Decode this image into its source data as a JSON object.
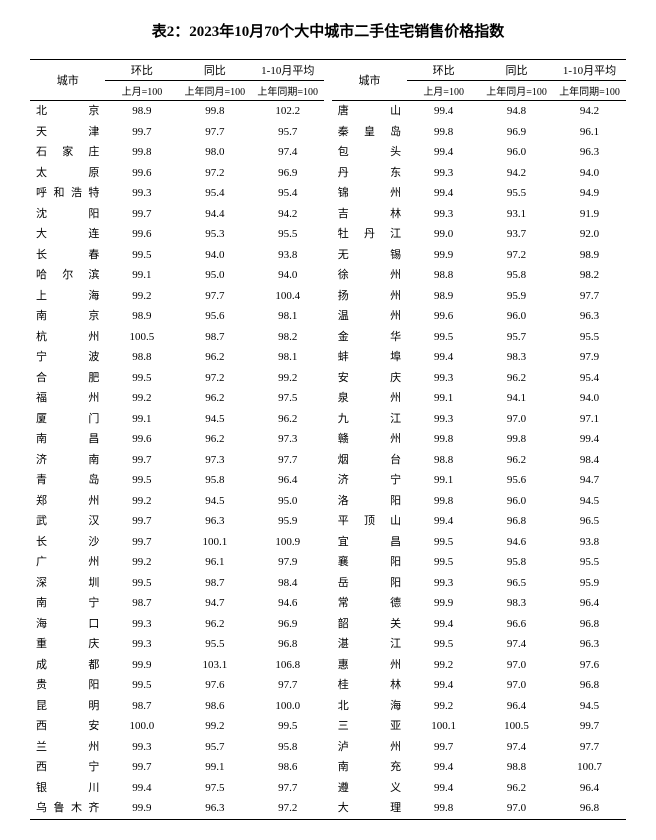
{
  "title": "表2：2023年10月70个大中城市二手住宅销售价格指数",
  "header": {
    "city": "城市",
    "mm": "环比",
    "yy": "同比",
    "avg": "1-10月平均",
    "mm_sub": "上月=100",
    "yy_sub": "上年同月=100",
    "avg_sub": "上年同期=100"
  },
  "left": [
    {
      "c": "北京",
      "mm": "98.9",
      "yy": "99.8",
      "avg": "102.2"
    },
    {
      "c": "天津",
      "mm": "99.7",
      "yy": "97.7",
      "avg": "95.7"
    },
    {
      "c": "石家庄",
      "mm": "99.8",
      "yy": "98.0",
      "avg": "97.4"
    },
    {
      "c": "太原",
      "mm": "99.6",
      "yy": "97.2",
      "avg": "96.9"
    },
    {
      "c": "呼和浩特",
      "mm": "99.3",
      "yy": "95.4",
      "avg": "95.4"
    },
    {
      "c": "沈阳",
      "mm": "99.7",
      "yy": "94.4",
      "avg": "94.2"
    },
    {
      "c": "大连",
      "mm": "99.6",
      "yy": "95.3",
      "avg": "95.5"
    },
    {
      "c": "长春",
      "mm": "99.5",
      "yy": "94.0",
      "avg": "93.8"
    },
    {
      "c": "哈尔滨",
      "mm": "99.1",
      "yy": "95.0",
      "avg": "94.0"
    },
    {
      "c": "上海",
      "mm": "99.2",
      "yy": "97.7",
      "avg": "100.4"
    },
    {
      "c": "南京",
      "mm": "98.9",
      "yy": "95.6",
      "avg": "98.1"
    },
    {
      "c": "杭州",
      "mm": "100.5",
      "yy": "98.7",
      "avg": "98.2"
    },
    {
      "c": "宁波",
      "mm": "98.8",
      "yy": "96.2",
      "avg": "98.1"
    },
    {
      "c": "合肥",
      "mm": "99.5",
      "yy": "97.2",
      "avg": "99.2"
    },
    {
      "c": "福州",
      "mm": "99.2",
      "yy": "96.2",
      "avg": "97.5"
    },
    {
      "c": "厦门",
      "mm": "99.1",
      "yy": "94.5",
      "avg": "96.2"
    },
    {
      "c": "南昌",
      "mm": "99.6",
      "yy": "96.2",
      "avg": "97.3"
    },
    {
      "c": "济南",
      "mm": "99.7",
      "yy": "97.3",
      "avg": "97.7"
    },
    {
      "c": "青岛",
      "mm": "99.5",
      "yy": "95.8",
      "avg": "96.4"
    },
    {
      "c": "郑州",
      "mm": "99.2",
      "yy": "94.5",
      "avg": "95.0"
    },
    {
      "c": "武汉",
      "mm": "99.7",
      "yy": "96.3",
      "avg": "95.9"
    },
    {
      "c": "长沙",
      "mm": "99.7",
      "yy": "100.1",
      "avg": "100.9"
    },
    {
      "c": "广州",
      "mm": "99.2",
      "yy": "96.1",
      "avg": "97.9"
    },
    {
      "c": "深圳",
      "mm": "99.5",
      "yy": "98.7",
      "avg": "98.4"
    },
    {
      "c": "南宁",
      "mm": "98.7",
      "yy": "94.7",
      "avg": "94.6"
    },
    {
      "c": "海口",
      "mm": "99.3",
      "yy": "96.2",
      "avg": "96.9"
    },
    {
      "c": "重庆",
      "mm": "99.3",
      "yy": "95.5",
      "avg": "96.8"
    },
    {
      "c": "成都",
      "mm": "99.9",
      "yy": "103.1",
      "avg": "106.8"
    },
    {
      "c": "贵阳",
      "mm": "99.5",
      "yy": "97.6",
      "avg": "97.7"
    },
    {
      "c": "昆明",
      "mm": "98.7",
      "yy": "98.6",
      "avg": "100.0"
    },
    {
      "c": "西安",
      "mm": "100.0",
      "yy": "99.2",
      "avg": "99.5"
    },
    {
      "c": "兰州",
      "mm": "99.3",
      "yy": "95.7",
      "avg": "95.8"
    },
    {
      "c": "西宁",
      "mm": "99.7",
      "yy": "99.1",
      "avg": "98.6"
    },
    {
      "c": "银川",
      "mm": "99.4",
      "yy": "97.5",
      "avg": "97.7"
    },
    {
      "c": "乌鲁木齐",
      "mm": "99.9",
      "yy": "96.3",
      "avg": "97.2"
    }
  ],
  "right": [
    {
      "c": "唐山",
      "mm": "99.4",
      "yy": "94.8",
      "avg": "94.2"
    },
    {
      "c": "秦皇岛",
      "mm": "99.8",
      "yy": "96.9",
      "avg": "96.1"
    },
    {
      "c": "包头",
      "mm": "99.4",
      "yy": "96.0",
      "avg": "96.3"
    },
    {
      "c": "丹东",
      "mm": "99.3",
      "yy": "94.2",
      "avg": "94.0"
    },
    {
      "c": "锦州",
      "mm": "99.4",
      "yy": "95.5",
      "avg": "94.9"
    },
    {
      "c": "吉林",
      "mm": "99.3",
      "yy": "93.1",
      "avg": "91.9"
    },
    {
      "c": "牡丹江",
      "mm": "99.0",
      "yy": "93.7",
      "avg": "92.0"
    },
    {
      "c": "无锡",
      "mm": "99.9",
      "yy": "97.2",
      "avg": "98.9"
    },
    {
      "c": "徐州",
      "mm": "98.8",
      "yy": "95.8",
      "avg": "98.2"
    },
    {
      "c": "扬州",
      "mm": "98.9",
      "yy": "95.9",
      "avg": "97.7"
    },
    {
      "c": "温州",
      "mm": "99.6",
      "yy": "96.0",
      "avg": "96.3"
    },
    {
      "c": "金华",
      "mm": "99.5",
      "yy": "95.7",
      "avg": "95.5"
    },
    {
      "c": "蚌埠",
      "mm": "99.4",
      "yy": "98.3",
      "avg": "97.9"
    },
    {
      "c": "安庆",
      "mm": "99.3",
      "yy": "96.2",
      "avg": "95.4"
    },
    {
      "c": "泉州",
      "mm": "99.1",
      "yy": "94.1",
      "avg": "94.0"
    },
    {
      "c": "九江",
      "mm": "99.3",
      "yy": "97.0",
      "avg": "97.1"
    },
    {
      "c": "赣州",
      "mm": "99.8",
      "yy": "99.8",
      "avg": "99.4"
    },
    {
      "c": "烟台",
      "mm": "98.8",
      "yy": "96.2",
      "avg": "98.4"
    },
    {
      "c": "济宁",
      "mm": "99.1",
      "yy": "95.6",
      "avg": "94.7"
    },
    {
      "c": "洛阳",
      "mm": "99.8",
      "yy": "96.0",
      "avg": "94.5"
    },
    {
      "c": "平顶山",
      "mm": "99.4",
      "yy": "96.8",
      "avg": "96.5"
    },
    {
      "c": "宜昌",
      "mm": "99.5",
      "yy": "94.6",
      "avg": "93.8"
    },
    {
      "c": "襄阳",
      "mm": "99.5",
      "yy": "95.8",
      "avg": "95.5"
    },
    {
      "c": "岳阳",
      "mm": "99.3",
      "yy": "96.5",
      "avg": "95.9"
    },
    {
      "c": "常德",
      "mm": "99.9",
      "yy": "98.3",
      "avg": "96.4"
    },
    {
      "c": "韶关",
      "mm": "99.4",
      "yy": "96.6",
      "avg": "96.8"
    },
    {
      "c": "湛江",
      "mm": "99.5",
      "yy": "97.4",
      "avg": "96.3"
    },
    {
      "c": "惠州",
      "mm": "99.2",
      "yy": "97.0",
      "avg": "97.6"
    },
    {
      "c": "桂林",
      "mm": "99.4",
      "yy": "97.0",
      "avg": "96.8"
    },
    {
      "c": "北海",
      "mm": "99.2",
      "yy": "96.4",
      "avg": "94.5"
    },
    {
      "c": "三亚",
      "mm": "100.1",
      "yy": "100.5",
      "avg": "99.7"
    },
    {
      "c": "泸州",
      "mm": "99.7",
      "yy": "97.4",
      "avg": "97.7"
    },
    {
      "c": "南充",
      "mm": "99.4",
      "yy": "98.8",
      "avg": "100.7"
    },
    {
      "c": "遵义",
      "mm": "99.4",
      "yy": "96.2",
      "avg": "96.4"
    },
    {
      "c": "大理",
      "mm": "99.8",
      "yy": "97.0",
      "avg": "96.8"
    }
  ]
}
